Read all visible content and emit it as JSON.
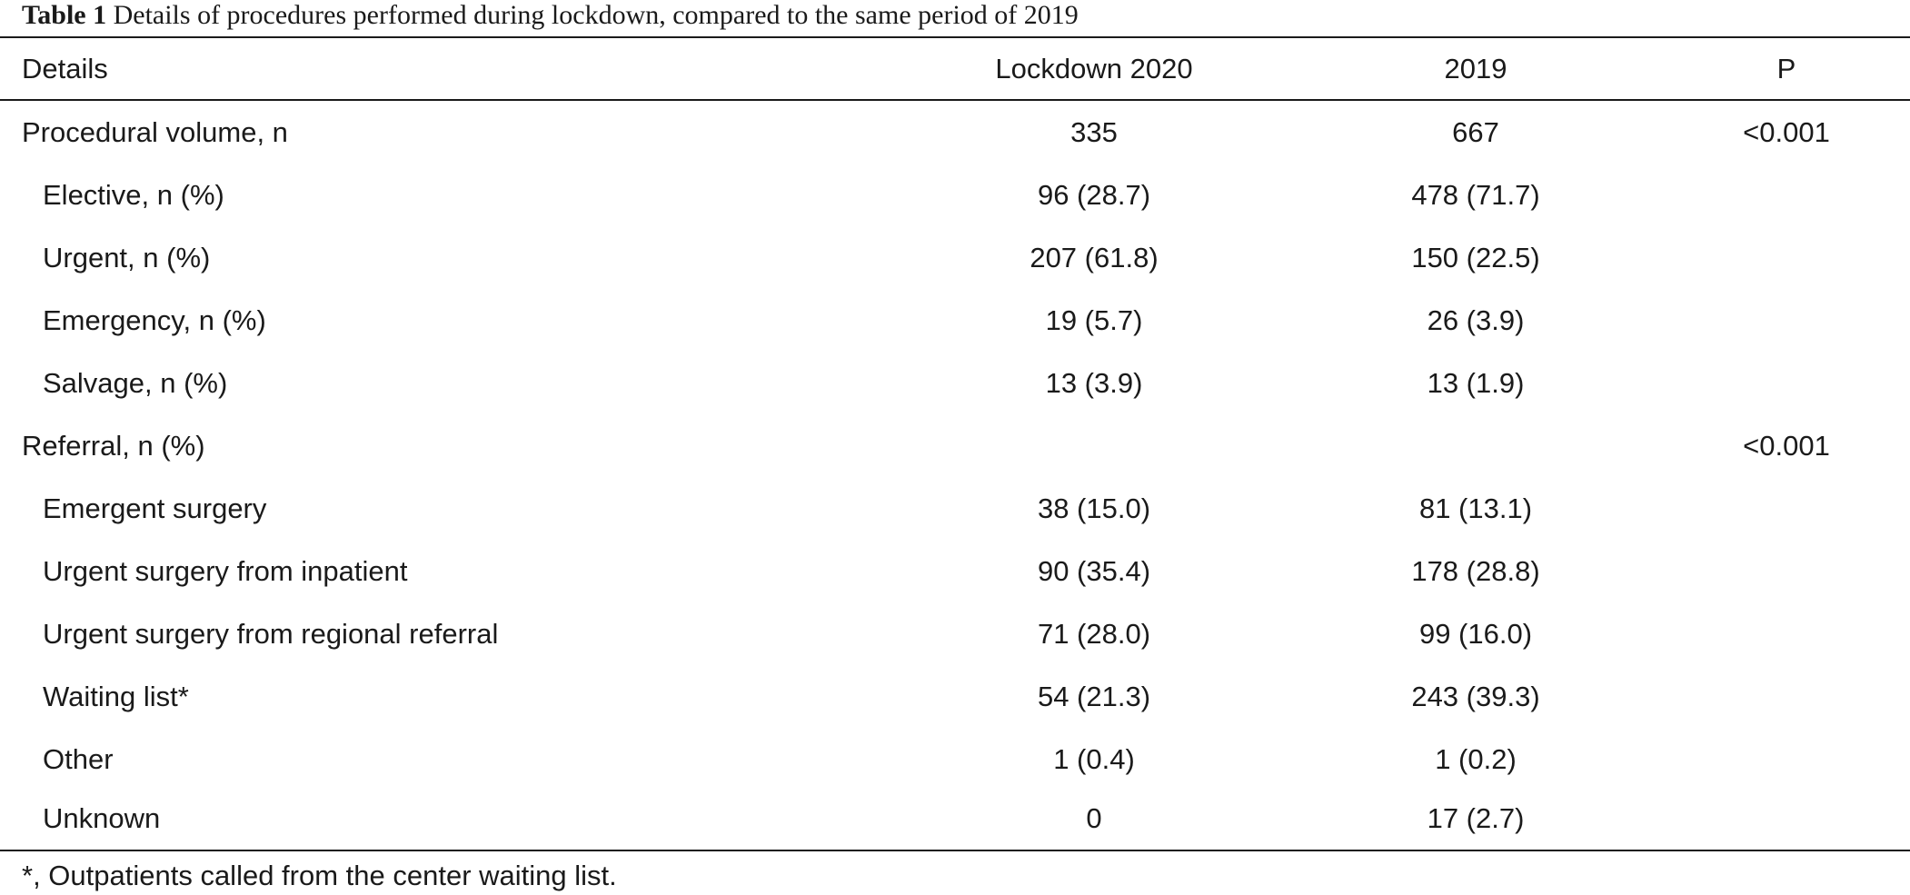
{
  "table": {
    "caption_label": "Table 1",
    "caption_text": "Details of procedures performed during lockdown, compared to the same period of 2019",
    "headers": {
      "details": "Details",
      "lockdown": "Lockdown 2020",
      "year2019": "2019",
      "p": "P"
    },
    "rows": [
      {
        "details": "Procedural volume, n",
        "lockdown": "335",
        "year2019": "667",
        "p": "<0.001"
      },
      {
        "details": "Elective, n (%)",
        "lockdown": "96 (28.7)",
        "year2019": "478 (71.7)",
        "p": ""
      },
      {
        "details": "Urgent, n (%)",
        "lockdown": "207 (61.8)",
        "year2019": "150 (22.5)",
        "p": ""
      },
      {
        "details": "Emergency, n (%)",
        "lockdown": "19 (5.7)",
        "year2019": "26 (3.9)",
        "p": ""
      },
      {
        "details": "Salvage, n (%)",
        "lockdown": "13 (3.9)",
        "year2019": "13 (1.9)",
        "p": ""
      },
      {
        "details": "Referral, n (%)",
        "lockdown": "",
        "year2019": "",
        "p": "<0.001"
      },
      {
        "details": "Emergent surgery",
        "lockdown": "38 (15.0)",
        "year2019": "81 (13.1)",
        "p": ""
      },
      {
        "details": "Urgent surgery from inpatient",
        "lockdown": "90 (35.4)",
        "year2019": "178 (28.8)",
        "p": ""
      },
      {
        "details": "Urgent surgery from regional referral",
        "lockdown": "71 (28.0)",
        "year2019": "99 (16.0)",
        "p": ""
      },
      {
        "details": "Waiting list*",
        "lockdown": "54 (21.3)",
        "year2019": "243 (39.3)",
        "p": ""
      },
      {
        "details": "Other",
        "lockdown": "1 (0.4)",
        "year2019": "1 (0.2)",
        "p": ""
      },
      {
        "details": "Unknown",
        "lockdown": "0",
        "year2019": "17 (2.7)",
        "p": ""
      }
    ],
    "footnote": "*, Outpatients called from the center waiting list."
  }
}
